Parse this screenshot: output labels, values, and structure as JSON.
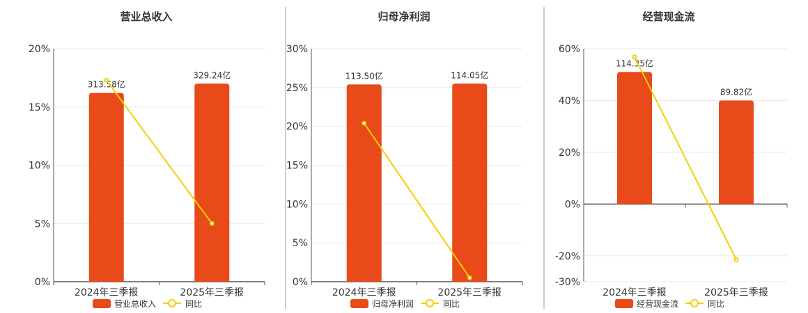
{
  "colors": {
    "bar": "#e84a19",
    "line": "#f2d000",
    "grid": "#e8e8ee",
    "axis": "#555555",
    "divider": "#9a9a9a",
    "text": "#333333"
  },
  "chart_data": [
    {
      "type": "bar",
      "title": "营业总收入",
      "categories": [
        "2024年三季报",
        "2025年三季报"
      ],
      "ylim": [
        0,
        20
      ],
      "yticks": [
        0,
        5,
        10,
        15,
        20
      ],
      "tick_suffix": "%",
      "series": [
        {
          "name": "营业总收入",
          "values": [
            16.2,
            17.0
          ],
          "labels": [
            "313.58亿",
            "329.24亿"
          ]
        },
        {
          "name": "同比",
          "type": "line",
          "values": [
            17.3,
            5.0
          ]
        }
      ],
      "legend": "bottom-center",
      "grid": true
    },
    {
      "type": "bar",
      "title": "归母净利润",
      "categories": [
        "2024年三季报",
        "2025年三季报"
      ],
      "ylim": [
        0,
        30
      ],
      "yticks": [
        0,
        5,
        10,
        15,
        20,
        25,
        30
      ],
      "tick_suffix": "%",
      "series": [
        {
          "name": "归母净利润",
          "values": [
            25.4,
            25.5
          ],
          "labels": [
            "113.50亿",
            "114.05亿"
          ]
        },
        {
          "name": "同比",
          "type": "line",
          "values": [
            20.4,
            0.5
          ]
        }
      ],
      "legend": "bottom-center",
      "grid": true
    },
    {
      "type": "bar",
      "title": "经营现金流",
      "categories": [
        "2024年三季报",
        "2025年三季报"
      ],
      "ylim": [
        -30,
        60
      ],
      "yticks": [
        -30,
        -20,
        0,
        20,
        40,
        60
      ],
      "tick_suffix": "%",
      "series": [
        {
          "name": "经营现金流",
          "values": [
            51,
            40
          ],
          "labels": [
            "114.35亿",
            "89.82亿"
          ]
        },
        {
          "name": "同比",
          "type": "line",
          "values": [
            56.8,
            -21.5
          ]
        }
      ],
      "legend": "bottom-center",
      "grid": true
    }
  ]
}
